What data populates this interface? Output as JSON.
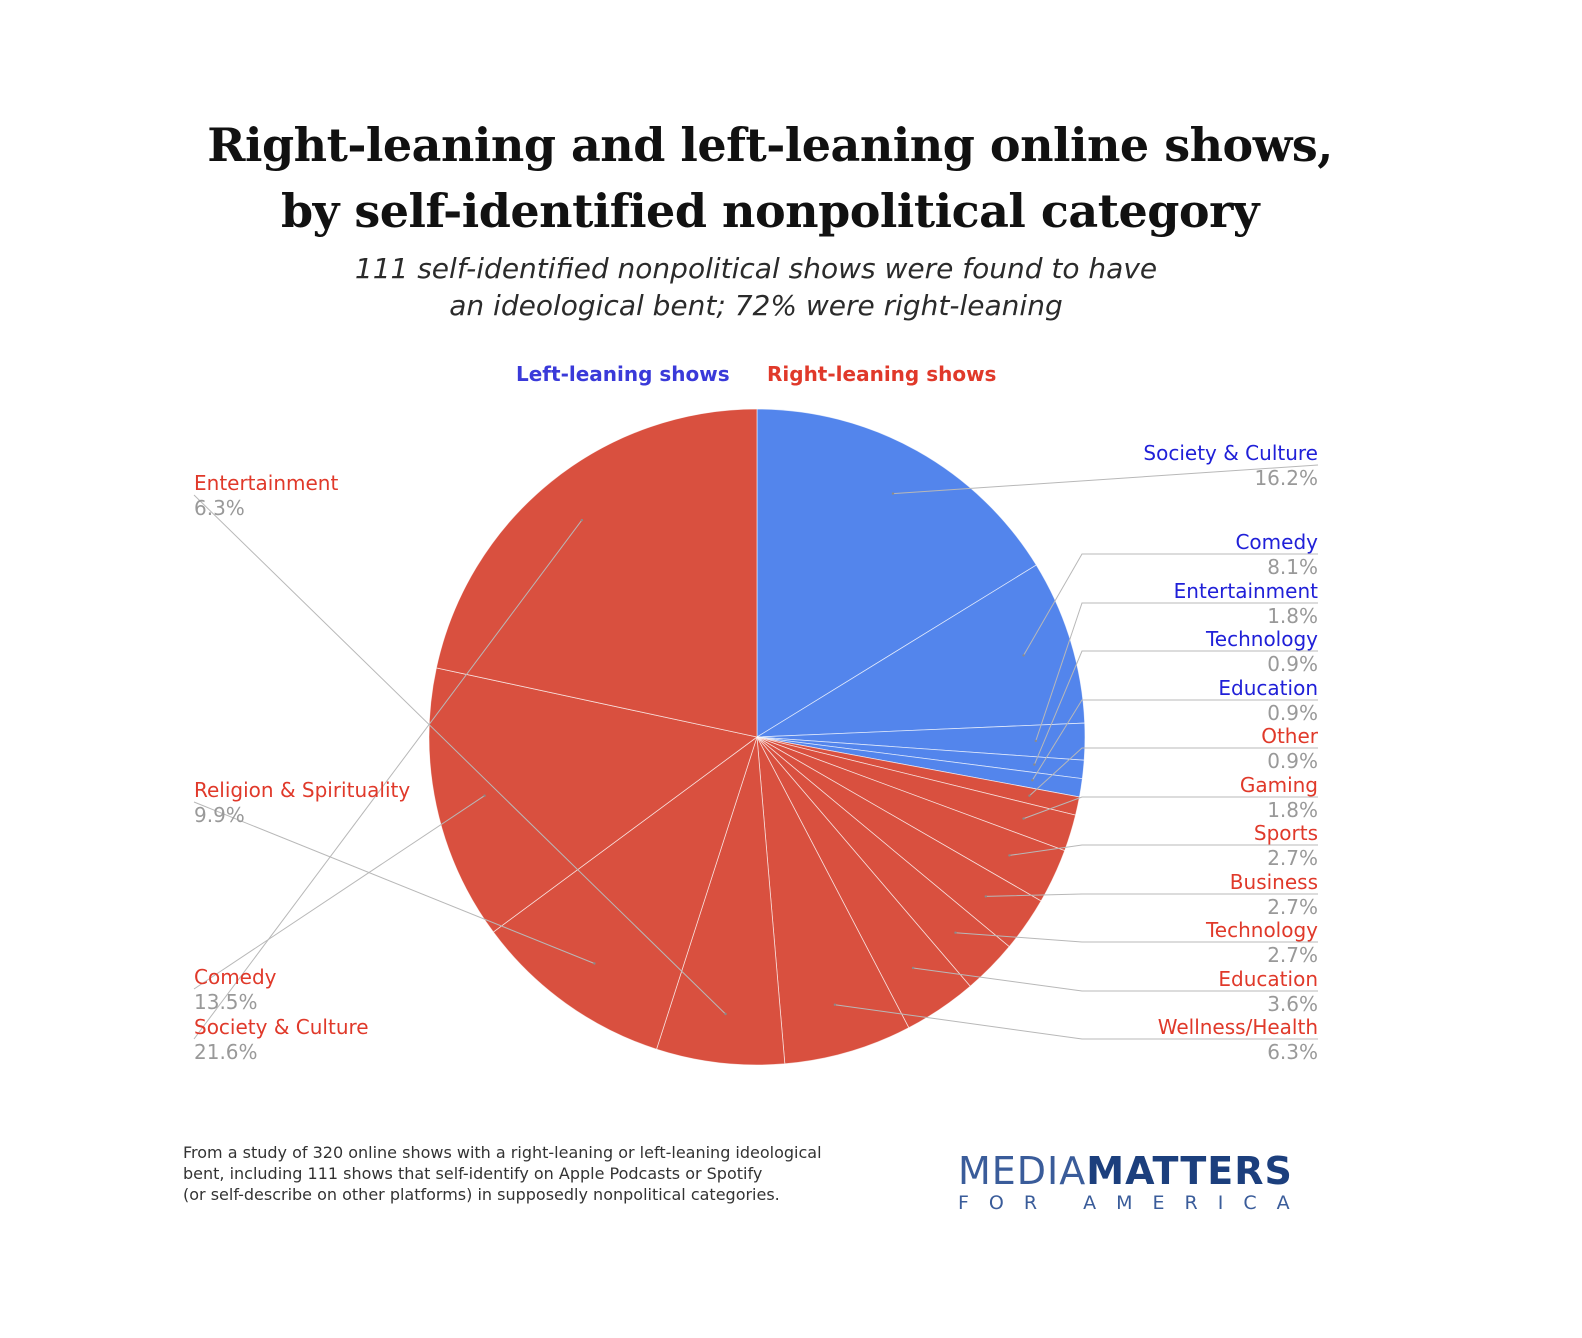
{
  "title": {
    "line1": "Right-leaning and left-leaning online shows,",
    "line2": "by self-identified nonpolitical category"
  },
  "subtitle": {
    "line1": "111 self-identified nonpolitical shows were found to have",
    "line2": "an ideological bent; 72% were right-leaning"
  },
  "legend": {
    "left": "Left-leaning shows",
    "right": "Right-leaning shows"
  },
  "colors": {
    "left": "#5385ec",
    "right": "#d9503f",
    "left_label": "#2020d8",
    "right_label": "#e0392a",
    "value_label": "#999999"
  },
  "chart_data": {
    "type": "pie",
    "slices": [
      {
        "group": "left",
        "label": "Society & Culture",
        "value": 16.2,
        "value_label": "16.2%"
      },
      {
        "group": "left",
        "label": "Comedy",
        "value": 8.1,
        "value_label": "8.1%"
      },
      {
        "group": "left",
        "label": "Entertainment",
        "value": 1.8,
        "value_label": "1.8%"
      },
      {
        "group": "left",
        "label": "Technology",
        "value": 0.9,
        "value_label": "0.9%"
      },
      {
        "group": "left",
        "label": "Education",
        "value": 0.9,
        "value_label": "0.9%"
      },
      {
        "group": "right",
        "label": "Other",
        "value": 0.9,
        "value_label": "0.9%"
      },
      {
        "group": "right",
        "label": "Gaming",
        "value": 1.8,
        "value_label": "1.8%"
      },
      {
        "group": "right",
        "label": "Sports",
        "value": 2.7,
        "value_label": "2.7%"
      },
      {
        "group": "right",
        "label": "Business",
        "value": 2.7,
        "value_label": "2.7%"
      },
      {
        "group": "right",
        "label": "Technology",
        "value": 2.7,
        "value_label": "2.7%"
      },
      {
        "group": "right",
        "label": "Education",
        "value": 3.6,
        "value_label": "3.6%"
      },
      {
        "group": "right",
        "label": "Wellness/Health",
        "value": 6.3,
        "value_label": "6.3%"
      },
      {
        "group": "right",
        "label": "Entertainment",
        "value": 6.3,
        "value_label": "6.3%"
      },
      {
        "group": "right",
        "label": "Religion & Spirituality",
        "value": 9.9,
        "value_label": "9.9%"
      },
      {
        "group": "right",
        "label": "Comedy",
        "value": 13.5,
        "value_label": "13.5%"
      },
      {
        "group": "right",
        "label": "Society & Culture",
        "value": 21.6,
        "value_label": "21.6%"
      }
    ]
  },
  "footnote": {
    "line1": "From a study of 320 online shows with a right-leaning or left-leaning ideological",
    "line2": "bent, including 111 shows that self-identify on Apple Podcasts or Spotify",
    "line3": "(or self-describe on other platforms) in supposedly nonpolitical categories."
  },
  "logo": {
    "word1": "MEDIA",
    "word2": "MATTERS",
    "tagline": "FOR AMERICA"
  }
}
